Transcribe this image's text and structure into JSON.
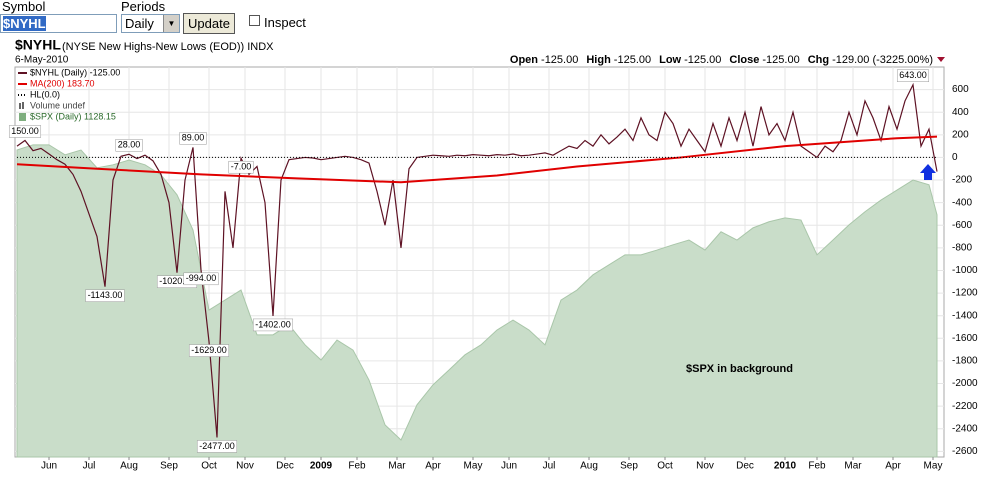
{
  "form": {
    "symbol_label": "Symbol",
    "symbol": "$NYHL",
    "periods_label": "Periods",
    "period": "Daily",
    "button": "Update",
    "checkbox": "Inspect"
  },
  "chart_data": {
    "type": "line",
    "title": "$NYHL",
    "subtitle": "(NYSE New Highs-New Lows (EOD)) INDX",
    "date": "6-May-2010",
    "quote": [
      {
        "label": "Open",
        "value": "-125.00"
      },
      {
        "label": "High",
        "value": "-125.00"
      },
      {
        "label": "Low",
        "value": "-125.00"
      },
      {
        "label": "Close",
        "value": "-125.00"
      },
      {
        "label": "Chg",
        "value": "-129.00 (-3225.00%)"
      }
    ],
    "xlim": [
      0,
      115
    ],
    "xticks": [
      {
        "value": 4,
        "label": "Jun"
      },
      {
        "value": 9,
        "label": "Jul"
      },
      {
        "value": 14,
        "label": "Aug"
      },
      {
        "value": 19,
        "label": "Sep"
      },
      {
        "value": 24,
        "label": "Oct"
      },
      {
        "value": 28.5,
        "label": "Nov"
      },
      {
        "value": 33.5,
        "label": "Dec"
      },
      {
        "value": 38,
        "label": "2009"
      },
      {
        "value": 42.5,
        "label": "Feb"
      },
      {
        "value": 47.5,
        "label": "Mar"
      },
      {
        "value": 52,
        "label": "Apr"
      },
      {
        "value": 57,
        "label": "May"
      },
      {
        "value": 61.5,
        "label": "Jun"
      },
      {
        "value": 66.5,
        "label": "Jul"
      },
      {
        "value": 71.5,
        "label": "Aug"
      },
      {
        "value": 76.5,
        "label": "Sep"
      },
      {
        "value": 81,
        "label": "Oct"
      },
      {
        "value": 86,
        "label": "Nov"
      },
      {
        "value": 91,
        "label": "Dec"
      },
      {
        "value": 96,
        "label": "2010"
      },
      {
        "value": 100,
        "label": "Feb"
      },
      {
        "value": 104.5,
        "label": "Mar"
      },
      {
        "value": 109.5,
        "label": "Apr"
      },
      {
        "value": 114.5,
        "label": "May"
      }
    ],
    "ylim": [
      -2650,
      800
    ],
    "yticks": [
      600,
      400,
      200,
      0,
      -200,
      -400,
      -600,
      -800,
      -1000,
      -1200,
      -1400,
      -1600,
      -1800,
      -2000,
      -2200,
      -2400,
      -2600
    ],
    "y2lim": [
      600,
      1497
    ],
    "grid": true,
    "series": [
      {
        "name": "$SPX (Daily) 1128.15",
        "color": "#c9ddc9",
        "style": "area",
        "axis": "y2",
        "x": [
          0,
          2,
          4,
          6,
          8,
          10,
          12,
          14,
          16,
          18,
          20,
          22,
          24,
          26,
          28,
          30,
          32,
          34,
          36,
          38,
          40,
          42,
          44,
          46,
          48,
          50,
          52,
          54,
          56,
          58,
          60,
          62,
          64,
          66,
          68,
          70,
          72,
          74,
          76,
          78,
          80,
          82,
          84,
          86,
          88,
          90,
          92,
          94,
          96,
          98,
          100,
          102,
          104,
          106,
          108,
          110,
          112,
          114,
          115
        ],
        "values": [
          1306,
          1318,
          1318,
          1295,
          1306,
          1265,
          1272,
          1283,
          1272,
          1249,
          1203,
          1122,
          938,
          961,
          984,
          881,
          881,
          904,
          858,
          823,
          869,
          846,
          777,
          674,
          639,
          720,
          766,
          800,
          835,
          858,
          892,
          915,
          892,
          858,
          961,
          984,
          1019,
          1042,
          1065,
          1065,
          1076,
          1088,
          1099,
          1076,
          1118,
          1099,
          1127,
          1141,
          1150,
          1145,
          1065,
          1099,
          1134,
          1164,
          1191,
          1214,
          1237,
          1226,
          1157
        ]
      },
      {
        "name": "$NYHL (Daily) -125.00",
        "color": "#5e1224",
        "x": [
          0,
          1,
          2,
          3,
          4,
          5,
          6,
          7,
          8,
          9,
          10,
          11,
          12,
          13,
          14,
          15,
          16,
          17,
          18,
          19,
          20,
          21,
          22,
          23,
          24,
          25,
          26,
          27,
          28,
          29,
          30,
          31,
          32,
          33,
          34,
          35,
          36,
          37,
          38,
          39,
          40,
          41,
          42,
          43,
          44,
          45,
          46,
          47,
          48,
          49,
          50,
          51,
          52,
          53,
          54,
          55,
          56,
          57,
          58,
          59,
          60,
          61,
          62,
          63,
          64,
          65,
          66,
          67,
          68,
          69,
          70,
          71,
          72,
          73,
          74,
          75,
          76,
          77,
          78,
          79,
          80,
          81,
          82,
          83,
          84,
          85,
          86,
          87,
          88,
          89,
          90,
          91,
          92,
          93,
          94,
          95,
          96,
          97,
          98,
          99,
          100,
          101,
          102,
          103,
          104,
          105,
          106,
          107,
          108,
          109,
          110,
          111,
          112,
          113,
          114,
          115
        ],
        "values": [
          100,
          150,
          60,
          80,
          30,
          -20,
          -60,
          -150,
          -300,
          -500,
          -700,
          -1143,
          -200,
          10,
          28,
          -10,
          20,
          -30,
          -150,
          -400,
          -1020,
          -200,
          89,
          -994,
          -1629,
          -2477,
          -300,
          -800,
          -7,
          -150,
          -80,
          -400,
          -1402,
          -200,
          -20,
          -10,
          0,
          -5,
          -20,
          -10,
          0,
          10,
          0,
          -20,
          -50,
          -300,
          -600,
          -200,
          -800,
          -100,
          0,
          10,
          20,
          15,
          10,
          20,
          15,
          25,
          20,
          15,
          25,
          20,
          30,
          15,
          20,
          30,
          40,
          20,
          60,
          100,
          80,
          150,
          100,
          200,
          120,
          180,
          250,
          150,
          350,
          200,
          150,
          400,
          300,
          100,
          250,
          150,
          50,
          300,
          100,
          350,
          150,
          400,
          100,
          450,
          200,
          300,
          150,
          400,
          100,
          50,
          0,
          100,
          50,
          150,
          400,
          200,
          500,
          350,
          150,
          450,
          250,
          500,
          643,
          100,
          250,
          -125
        ],
        "value_labels": [
          null,
          "150.00",
          null,
          null,
          null,
          null,
          null,
          null,
          null,
          null,
          null,
          "-1143.00",
          null,
          null,
          "28.00",
          null,
          null,
          null,
          null,
          null,
          "-1020.00",
          null,
          "89.00",
          "-994.00",
          "-1629.00",
          "-2477.00",
          null,
          null,
          "-7.00",
          null,
          null,
          null,
          "-1402.00",
          null,
          null,
          null,
          null,
          null,
          null,
          null,
          null,
          null,
          null,
          null,
          null,
          null,
          null,
          null,
          null,
          null,
          null,
          null,
          null,
          null,
          null,
          null,
          null,
          null,
          null,
          null,
          null,
          null,
          null,
          null,
          null,
          null,
          null,
          null,
          null,
          null,
          null,
          null,
          null,
          null,
          null,
          null,
          null,
          null,
          null,
          null,
          null,
          null,
          null,
          null,
          null,
          null,
          null,
          null,
          null,
          null,
          null,
          null,
          null,
          null,
          null,
          null,
          null,
          null,
          null,
          null,
          null,
          null,
          null,
          null,
          null,
          null,
          null,
          null,
          null,
          null,
          null,
          null,
          "643.00",
          null,
          null,
          null
        ]
      },
      {
        "name": "MA(200) 183.70",
        "color": "#e00000",
        "x": [
          0,
          10,
          23,
          35,
          48,
          60,
          70,
          83,
          96,
          110,
          115
        ],
        "values": [
          -60,
          -100,
          -150,
          -185,
          -220,
          -160,
          -80,
          0,
          100,
          170,
          183.7
        ]
      },
      {
        "name": "HL(0.0)",
        "color": "#000000",
        "style": "dotted",
        "x": [
          0,
          115
        ],
        "values": [
          0,
          0
        ]
      }
    ],
    "volume_label": "Volume undef",
    "annotation": "$SPX in background"
  }
}
